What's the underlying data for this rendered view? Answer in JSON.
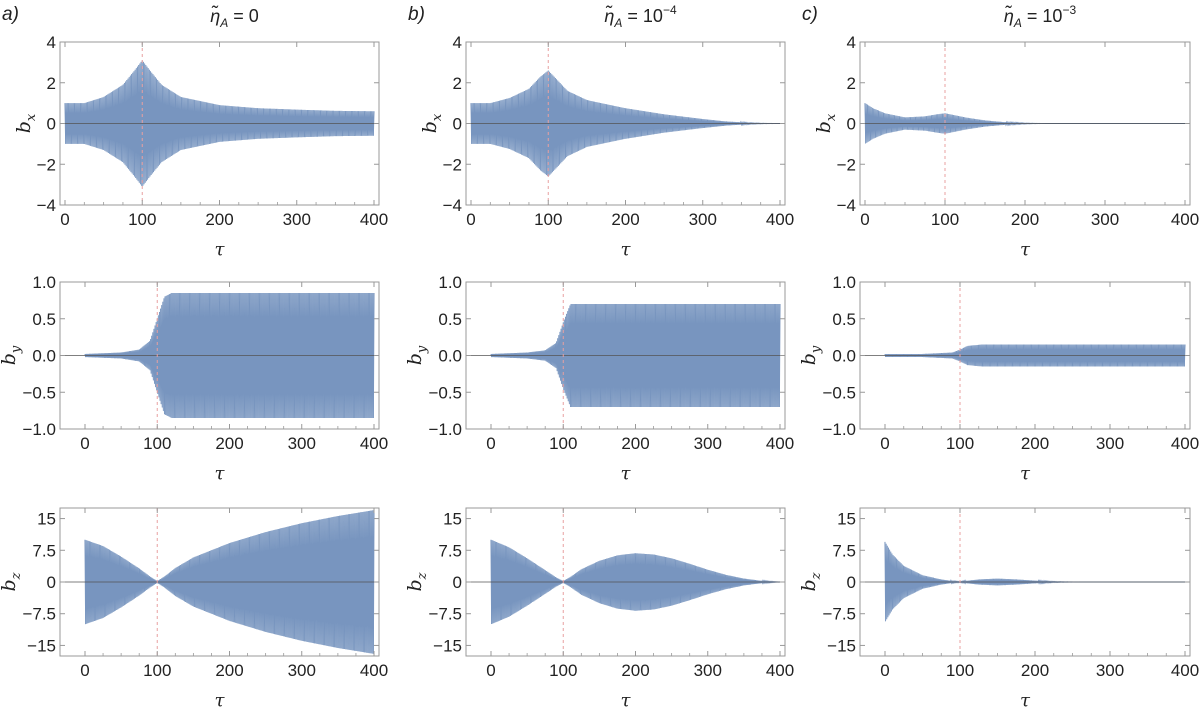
{
  "figure": {
    "columns": [
      {
        "letter": "a)",
        "title_eta": "η̃",
        "title_sub": "A",
        "title_eq": " = 0",
        "title_exp": ""
      },
      {
        "letter": "b)",
        "title_eta": "η̃",
        "title_sub": "A",
        "title_eq": " = 10",
        "title_exp": "−4"
      },
      {
        "letter": "c)",
        "title_eta": "η̃",
        "title_sub": "A",
        "title_eq": " = 10",
        "title_exp": "−3"
      }
    ],
    "xlabel": "τ",
    "colors": {
      "signal": "#5578ac",
      "signal_light": "#aabfde",
      "marker": "#e8a0a0",
      "axis": "#999999",
      "zero_line": "#555555"
    }
  },
  "chart_data": [
    {
      "type": "line",
      "panel": "a-bx",
      "ylabel": "b",
      "ylabel_sub": "x",
      "x_marker": 100,
      "xlim": [
        0,
        400
      ],
      "ylim": [
        -4,
        4
      ],
      "xticks": [
        0,
        100,
        200,
        300,
        400
      ],
      "yticks": [
        -4,
        -2,
        0,
        2,
        4
      ],
      "ytick_labels": [
        "−4",
        "−2",
        "0",
        "2",
        "4"
      ],
      "envelope": {
        "x": [
          0,
          25,
          50,
          75,
          90,
          100,
          110,
          125,
          150,
          200,
          250,
          300,
          350,
          400
        ],
        "y": [
          1.0,
          1.0,
          1.3,
          1.9,
          2.6,
          3.1,
          2.6,
          1.9,
          1.3,
          0.9,
          0.75,
          0.68,
          0.62,
          0.6
        ]
      }
    },
    {
      "type": "line",
      "panel": "b-bx",
      "ylabel": "b",
      "ylabel_sub": "x",
      "x_marker": 100,
      "xlim": [
        0,
        400
      ],
      "ylim": [
        -4,
        4
      ],
      "xticks": [
        0,
        100,
        200,
        300,
        400
      ],
      "yticks": [
        -4,
        -2,
        0,
        2,
        4
      ],
      "ytick_labels": [
        "−4",
        "−2",
        "0",
        "2",
        "4"
      ],
      "envelope": {
        "x": [
          0,
          25,
          50,
          75,
          90,
          100,
          110,
          125,
          150,
          200,
          250,
          300,
          330,
          360,
          380,
          400
        ],
        "y": [
          1.0,
          1.0,
          1.25,
          1.7,
          2.3,
          2.6,
          2.2,
          1.6,
          1.15,
          0.75,
          0.45,
          0.22,
          0.1,
          0.03,
          0.01,
          0.0
        ]
      }
    },
    {
      "type": "line",
      "panel": "c-bx",
      "ylabel": "b",
      "ylabel_sub": "x",
      "x_marker": 100,
      "xlim": [
        0,
        400
      ],
      "ylim": [
        -4,
        4
      ],
      "xticks": [
        0,
        100,
        200,
        300,
        400
      ],
      "yticks": [
        -4,
        -2,
        0,
        2,
        4
      ],
      "ytick_labels": [
        "−4",
        "−2",
        "0",
        "2",
        "4"
      ],
      "envelope": {
        "x": [
          0,
          10,
          25,
          50,
          75,
          90,
          100,
          110,
          125,
          150,
          175,
          200,
          225,
          240,
          400
        ],
        "y": [
          1.0,
          0.75,
          0.5,
          0.3,
          0.35,
          0.45,
          0.5,
          0.42,
          0.3,
          0.15,
          0.06,
          0.02,
          0.0,
          0.0,
          0.0
        ]
      }
    },
    {
      "type": "line",
      "panel": "a-by",
      "ylabel": "b",
      "ylabel_sub": "y",
      "x_marker": 100,
      "xlim": [
        0,
        400
      ],
      "ylim": [
        -1.0,
        1.0
      ],
      "xticks": [
        0,
        100,
        200,
        300,
        400
      ],
      "yticks": [
        -1.0,
        -0.5,
        0.0,
        0.5,
        1.0
      ],
      "ytick_labels": [
        "−1.0",
        "−0.5",
        "0.0",
        "0.5",
        "1.0"
      ],
      "envelope": {
        "x": [
          0,
          50,
          75,
          90,
          100,
          110,
          120,
          400
        ],
        "y": [
          0.02,
          0.04,
          0.08,
          0.2,
          0.5,
          0.8,
          0.85,
          0.85
        ]
      }
    },
    {
      "type": "line",
      "panel": "b-by",
      "ylabel": "b",
      "ylabel_sub": "y",
      "x_marker": 100,
      "xlim": [
        0,
        400
      ],
      "ylim": [
        -1.0,
        1.0
      ],
      "xticks": [
        0,
        100,
        200,
        300,
        400
      ],
      "yticks": [
        -1.0,
        -0.5,
        0.0,
        0.5,
        1.0
      ],
      "ytick_labels": [
        "−1.0",
        "−0.5",
        "0.0",
        "0.5",
        "1.0"
      ],
      "envelope": {
        "x": [
          0,
          50,
          75,
          90,
          100,
          110,
          120,
          400
        ],
        "y": [
          0.02,
          0.04,
          0.07,
          0.17,
          0.45,
          0.7,
          0.7,
          0.7
        ]
      }
    },
    {
      "type": "line",
      "panel": "c-by",
      "ylabel": "b",
      "ylabel_sub": "y",
      "x_marker": 100,
      "xlim": [
        0,
        400
      ],
      "ylim": [
        -1.0,
        1.0
      ],
      "xticks": [
        0,
        100,
        200,
        300,
        400
      ],
      "yticks": [
        -1.0,
        -0.5,
        0.0,
        0.5,
        1.0
      ],
      "ytick_labels": [
        "−1.0",
        "−0.5",
        "0.0",
        "0.5",
        "1.0"
      ],
      "envelope": {
        "x": [
          0,
          50,
          90,
          100,
          110,
          130,
          400
        ],
        "y": [
          0.02,
          0.02,
          0.04,
          0.08,
          0.13,
          0.15,
          0.15
        ]
      }
    },
    {
      "type": "line",
      "panel": "a-bz",
      "ylabel": "b",
      "ylabel_sub": "z",
      "x_marker": 100,
      "xlim": [
        0,
        400
      ],
      "ylim": [
        -17.5,
        17.5
      ],
      "xticks": [
        0,
        100,
        200,
        300,
        400
      ],
      "yticks": [
        -15,
        -7.5,
        0,
        7.5,
        15
      ],
      "ytick_labels": [
        "−15",
        "−7.5",
        "0",
        "7.5",
        "15"
      ],
      "envelope": {
        "x": [
          0,
          25,
          50,
          75,
          90,
          100,
          110,
          125,
          150,
          200,
          250,
          300,
          350,
          400
        ],
        "y": [
          10,
          8.5,
          6.0,
          3.2,
          1.3,
          0.2,
          1.3,
          3.3,
          5.8,
          9.2,
          11.8,
          13.9,
          15.6,
          17.0
        ]
      }
    },
    {
      "type": "line",
      "panel": "b-bz",
      "ylabel": "b",
      "ylabel_sub": "z",
      "x_marker": 100,
      "xlim": [
        0,
        400
      ],
      "ylim": [
        -17.5,
        17.5
      ],
      "xticks": [
        0,
        100,
        200,
        300,
        400
      ],
      "yticks": [
        -15,
        -7.5,
        0,
        7.5,
        15
      ],
      "ytick_labels": [
        "−15",
        "−7.5",
        "0",
        "7.5",
        "15"
      ],
      "envelope": {
        "x": [
          0,
          25,
          50,
          75,
          90,
          100,
          110,
          125,
          150,
          175,
          200,
          225,
          250,
          275,
          300,
          325,
          350,
          375,
          400
        ],
        "y": [
          10,
          8.2,
          5.6,
          2.8,
          1.1,
          0.2,
          1.2,
          3.0,
          5.0,
          6.3,
          6.8,
          6.5,
          5.6,
          4.3,
          2.9,
          1.7,
          0.8,
          0.25,
          0.0
        ]
      }
    },
    {
      "type": "line",
      "panel": "c-bz",
      "ylabel": "b",
      "ylabel_sub": "z",
      "x_marker": 100,
      "xlim": [
        0,
        400
      ],
      "ylim": [
        -17.5,
        17.5
      ],
      "xticks": [
        0,
        100,
        200,
        300,
        400
      ],
      "yticks": [
        -15,
        -7.5,
        0,
        7.5,
        15
      ],
      "ytick_labels": [
        "−15",
        "−7.5",
        "0",
        "7.5",
        "15"
      ],
      "envelope": {
        "x": [
          0,
          10,
          25,
          50,
          75,
          90,
          100,
          110,
          125,
          150,
          175,
          200,
          225,
          250,
          260,
          400
        ],
        "y": [
          9.5,
          6.5,
          3.8,
          1.6,
          0.6,
          0.2,
          0.1,
          0.3,
          0.6,
          0.8,
          0.6,
          0.3,
          0.1,
          0.02,
          0.0,
          0.0
        ]
      }
    }
  ]
}
